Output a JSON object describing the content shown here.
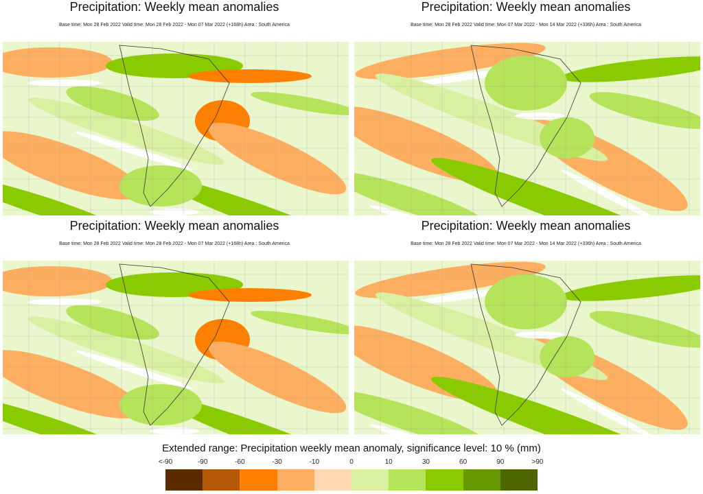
{
  "panels": [
    {
      "title": "Precipitation: Weekly mean anomalies",
      "subtitle": "Base time: Mon 28 Feb 2022 Valid time: Mon 28 Feb 2022 - Mon 07 Mar 2022 (+168h) Area : South America",
      "variant": "week1"
    },
    {
      "title": "Precipitation: Weekly mean anomalies",
      "subtitle": "Base time: Mon 28 Feb 2022 Valid time: Mon 07 Mar 2022 - Mon 14 Mar 2022 (+336h) Area : South America",
      "variant": "week2"
    },
    {
      "title": "Precipitation: Weekly mean anomalies",
      "subtitle": "Base time: Mon 28 Feb 2022 Valid time: Mon 28 Feb 2022 - Mon 07 Mar 2022 (+168h) Area : South America",
      "variant": "week1"
    },
    {
      "title": "Precipitation: Weekly mean anomalies",
      "subtitle": "Base time: Mon 28 Feb 2022 Valid time: Mon 07 Mar 2022 - Mon 14 Mar 2022 (+336h) Area : South America",
      "variant": "week2"
    }
  ],
  "legend": {
    "title": "Extended range: Precipitation weekly mean anomaly, significance level: 10 % (mm)",
    "ticks": [
      "<-90",
      "-90",
      "-60",
      "-30",
      "-10",
      "0",
      "10",
      "30",
      "60",
      "90",
      ">90"
    ],
    "colors": [
      "#5a2c00",
      "#b35806",
      "#ff8000",
      "#fdae61",
      "#fed8b1",
      "#d9f0a3",
      "#b5e35a",
      "#8acb00",
      "#669900",
      "#4d6600"
    ]
  }
}
